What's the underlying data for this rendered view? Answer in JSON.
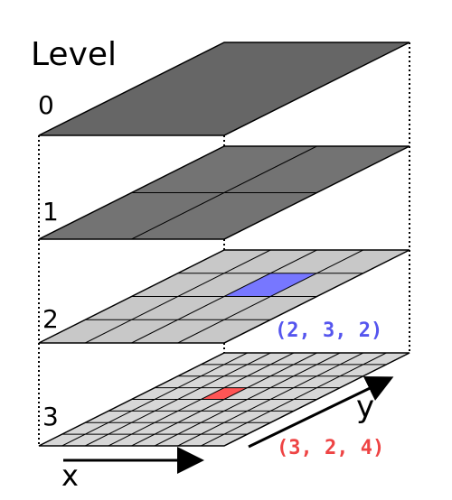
{
  "diagram": {
    "header": "Level",
    "levels": [
      {
        "label": "0",
        "subdivisions": 1,
        "fill": "#666666"
      },
      {
        "label": "1",
        "subdivisions": 2,
        "fill": "#737373"
      },
      {
        "label": "2",
        "subdivisions": 4,
        "fill": "#c8c8c8"
      },
      {
        "label": "3",
        "subdivisions": 8,
        "fill": "#d7d7d7"
      }
    ],
    "highlights": [
      {
        "level": "2",
        "coord": "(2, 3, 2)",
        "color": "#7777ff",
        "cell_col": 2,
        "cell_row": 2
      },
      {
        "level": "3",
        "coord": "(3, 2, 4)",
        "color": "#ff5555",
        "cell_col": 3,
        "cell_row": 4
      }
    ],
    "axes": {
      "x_label": "x",
      "y_label": "y"
    }
  }
}
